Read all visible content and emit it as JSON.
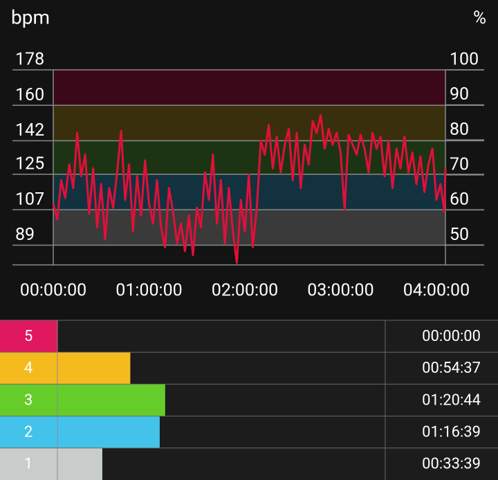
{
  "chart_data": {
    "type": "line",
    "y_label": "bpm",
    "y2_label": "%",
    "color": "#e0103a",
    "ylim": [
      79,
      178
    ],
    "yticks": [
      89,
      107,
      125,
      142,
      160,
      178
    ],
    "y2lim": [
      44.3,
      100
    ],
    "y2ticks": [
      50,
      60,
      70,
      80,
      90,
      100
    ],
    "xlim": [
      0,
      14739
    ],
    "xticks": [
      {
        "value": 0,
        "label": "00:00:00"
      },
      {
        "value": 3600,
        "label": "01:00:00"
      },
      {
        "value": 7200,
        "label": "02:00:00"
      },
      {
        "value": 10800,
        "label": "03:00:00"
      },
      {
        "value": 14400,
        "label": "04:00:00"
      }
    ],
    "band_colors": [
      "#3a3a3a",
      "#12323f",
      "#1d3414",
      "#3a2f0c",
      "#3a0818"
    ],
    "x": [
      0,
      150,
      300,
      450,
      600,
      750,
      900,
      1050,
      1200,
      1350,
      1500,
      1650,
      1800,
      1950,
      2100,
      2250,
      2400,
      2550,
      2700,
      2850,
      3000,
      3150,
      3300,
      3450,
      3600,
      3750,
      3900,
      4050,
      4200,
      4350,
      4500,
      4650,
      4800,
      4950,
      5100,
      5250,
      5400,
      5550,
      5700,
      5850,
      6000,
      6150,
      6300,
      6450,
      6600,
      6750,
      6900,
      7050,
      7200,
      7350,
      7500,
      7650,
      7800,
      7950,
      8100,
      8250,
      8400,
      8550,
      8700,
      8850,
      9000,
      9150,
      9300,
      9450,
      9600,
      9750,
      9900,
      10050,
      10200,
      10350,
      10500,
      10650,
      10800,
      10950,
      11100,
      11250,
      11400,
      11550,
      11700,
      11850,
      12000,
      12150,
      12300,
      12450,
      12600,
      12750,
      12900,
      13050,
      13200,
      13350,
      13500,
      13650,
      13800,
      13950,
      14100,
      14250,
      14400,
      14550,
      14700,
      14739
    ],
    "values": [
      110,
      102,
      122,
      113,
      130,
      118,
      146,
      124,
      135,
      105,
      128,
      98,
      120,
      92,
      118,
      108,
      126,
      147,
      112,
      130,
      96,
      124,
      104,
      132,
      110,
      100,
      122,
      98,
      88,
      118,
      106,
      90,
      100,
      86,
      104,
      84,
      108,
      98,
      126,
      112,
      135,
      100,
      122,
      90,
      118,
      96,
      80,
      112,
      96,
      125,
      88,
      108,
      142,
      135,
      150,
      128,
      144,
      126,
      140,
      148,
      122,
      146,
      118,
      140,
      130,
      152,
      146,
      155,
      138,
      148,
      140,
      146,
      136,
      107,
      145,
      140,
      135,
      145,
      138,
      126,
      146,
      138,
      144,
      124,
      142,
      118,
      138,
      128,
      144,
      126,
      136,
      120,
      134,
      116,
      130,
      138,
      112,
      120,
      106,
      128
    ]
  },
  "zones": [
    {
      "zone": 5,
      "color": "#e0185e",
      "time": {
        "value": 0,
        "label": "00:00:00"
      }
    },
    {
      "zone": 4,
      "color": "#f5bb1e",
      "time": {
        "value": 3277,
        "label": "00:54:37"
      }
    },
    {
      "zone": 3,
      "color": "#66cc2a",
      "time": {
        "value": 4844,
        "label": "01:20:44"
      }
    },
    {
      "zone": 2,
      "color": "#44c3ea",
      "time": {
        "value": 4599,
        "label": "01:16:39"
      }
    },
    {
      "zone": 1,
      "color": "#c8cdcc",
      "time": {
        "value": 2019,
        "label": "00:33:39"
      }
    }
  ]
}
